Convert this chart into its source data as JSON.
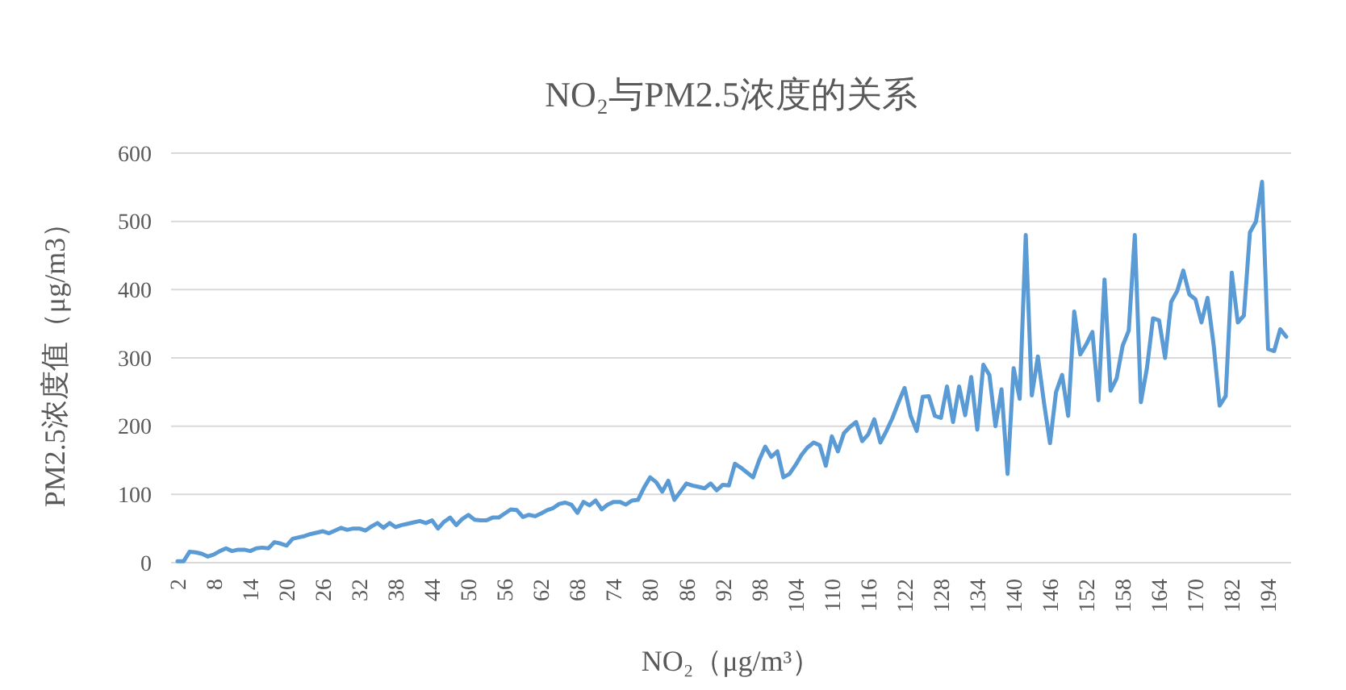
{
  "chart_data": {
    "type": "line",
    "title": "NO₂与PM2.5浓度的关系",
    "xlabel": "NO₂（μg/m³）",
    "ylabel": "PM2.5浓度值（μg/m3）",
    "categories": [
      "2",
      null,
      null,
      null,
      null,
      null,
      "8",
      null,
      null,
      null,
      null,
      null,
      "14",
      null,
      null,
      null,
      null,
      null,
      "20",
      null,
      null,
      null,
      null,
      null,
      "26",
      null,
      null,
      null,
      null,
      null,
      "32",
      null,
      null,
      null,
      null,
      null,
      "38",
      null,
      null,
      null,
      null,
      null,
      "44",
      null,
      null,
      null,
      null,
      null,
      "50",
      null,
      null,
      null,
      null,
      null,
      "56",
      null,
      null,
      null,
      null,
      null,
      "62",
      null,
      null,
      null,
      null,
      null,
      "68",
      null,
      null,
      null,
      null,
      null,
      "74",
      null,
      null,
      null,
      null,
      null,
      "80",
      null,
      null,
      null,
      null,
      null,
      "86",
      null,
      null,
      null,
      null,
      null,
      "92",
      null,
      null,
      null,
      null,
      null,
      "98",
      null,
      null,
      null,
      null,
      null,
      "104",
      null,
      null,
      null,
      null,
      null,
      "110",
      null,
      null,
      null,
      null,
      null,
      "116",
      null,
      null,
      null,
      null,
      null,
      "122",
      null,
      null,
      null,
      null,
      null,
      "128",
      null,
      null,
      null,
      null,
      null,
      "134",
      null,
      null,
      null,
      null,
      null,
      "140",
      null,
      null,
      null,
      null,
      null,
      "146",
      null,
      null,
      null,
      null,
      null,
      "152",
      null,
      null,
      null,
      null,
      null,
      "158",
      null,
      null,
      null,
      null,
      null,
      "164",
      null,
      null,
      null,
      null,
      null,
      "170",
      null,
      null,
      null,
      null,
      null,
      "182",
      null,
      null,
      null,
      null,
      null,
      "194",
      null,
      null,
      null
    ],
    "series": [
      {
        "color": "#5b9bd5",
        "values": [
          2,
          2,
          16,
          15,
          13,
          9,
          12,
          17,
          21,
          17,
          19,
          19,
          17,
          21,
          22,
          21,
          30,
          28,
          25,
          35,
          37,
          39,
          42,
          44,
          46,
          43,
          47,
          51,
          48,
          50,
          50,
          47,
          53,
          58,
          51,
          58,
          52,
          55,
          57,
          59,
          61,
          58,
          62,
          50,
          60,
          66,
          55,
          64,
          70,
          63,
          62,
          62,
          66,
          66,
          72,
          78,
          77,
          67,
          70,
          68,
          72,
          77,
          80,
          86,
          88,
          85,
          73,
          89,
          84,
          91,
          78,
          85,
          89,
          89,
          85,
          91,
          92,
          110,
          125,
          118,
          104,
          120,
          92,
          104,
          116,
          113,
          111,
          109,
          116,
          106,
          114,
          113,
          145,
          139,
          132,
          125,
          150,
          170,
          155,
          163,
          125,
          130,
          143,
          158,
          169,
          176,
          172,
          142,
          185,
          163,
          190,
          199,
          206,
          178,
          188,
          210,
          176,
          193,
          212,
          235,
          256,
          215,
          193,
          243,
          244,
          215,
          212,
          258,
          206,
          258,
          216,
          272,
          195,
          290,
          275,
          200,
          254,
          130,
          285,
          240,
          480,
          245,
          302,
          235,
          175,
          250,
          275,
          215,
          368,
          305,
          320,
          338,
          238,
          415,
          252,
          270,
          318,
          340,
          480,
          235,
          285,
          358,
          355,
          300,
          382,
          398,
          428,
          393,
          386,
          352,
          388,
          320,
          230,
          244,
          425,
          352,
          362,
          484,
          500,
          558,
          313,
          310,
          342,
          331
        ]
      }
    ],
    "ylim": [
      0,
      600
    ],
    "yticks": [
      0,
      100,
      200,
      300,
      400,
      500,
      600
    ],
    "grid": "y",
    "marker": "none",
    "line_style": "solid"
  }
}
